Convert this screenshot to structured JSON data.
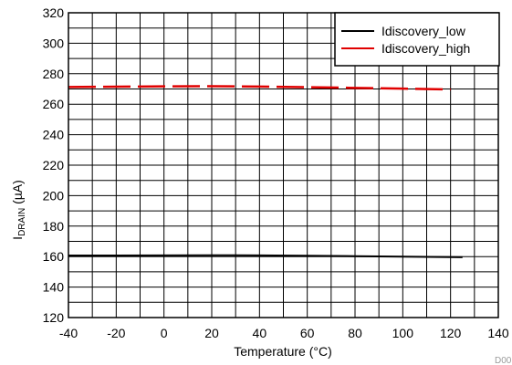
{
  "chart_data": {
    "type": "line",
    "xlabel": "Temperature (°C)",
    "ylabel_main": "I",
    "ylabel_sub": "DRAIN",
    "ylabel_unit": " (µA)",
    "xlim": [
      -40,
      140
    ],
    "ylim": [
      120,
      320
    ],
    "x_ticks": [
      -40,
      -20,
      0,
      20,
      40,
      60,
      80,
      100,
      120,
      140
    ],
    "y_ticks": [
      120,
      140,
      160,
      180,
      200,
      220,
      240,
      260,
      280,
      300,
      320
    ],
    "x_minor_step": 10,
    "y_minor_step": 10,
    "grid": true,
    "legend_position": "top-right",
    "series": [
      {
        "name": "Idiscovery_low",
        "color": "#000000",
        "dash": "solid",
        "x": [
          -40,
          -20,
          0,
          20,
          40,
          60,
          80,
          100,
          120,
          125
        ],
        "y": [
          160.7,
          160.7,
          160.8,
          160.9,
          160.8,
          160.6,
          160.3,
          160.0,
          159.7,
          159.6
        ]
      },
      {
        "name": "Idiscovery_high",
        "color": "#e00000",
        "dash": "dashed",
        "x": [
          -40,
          -20,
          0,
          20,
          40,
          60,
          80,
          100,
          120
        ],
        "y": [
          271.3,
          271.5,
          271.7,
          271.8,
          271.6,
          271.2,
          270.7,
          270.2,
          269.7
        ]
      }
    ],
    "footnote": "D00"
  }
}
